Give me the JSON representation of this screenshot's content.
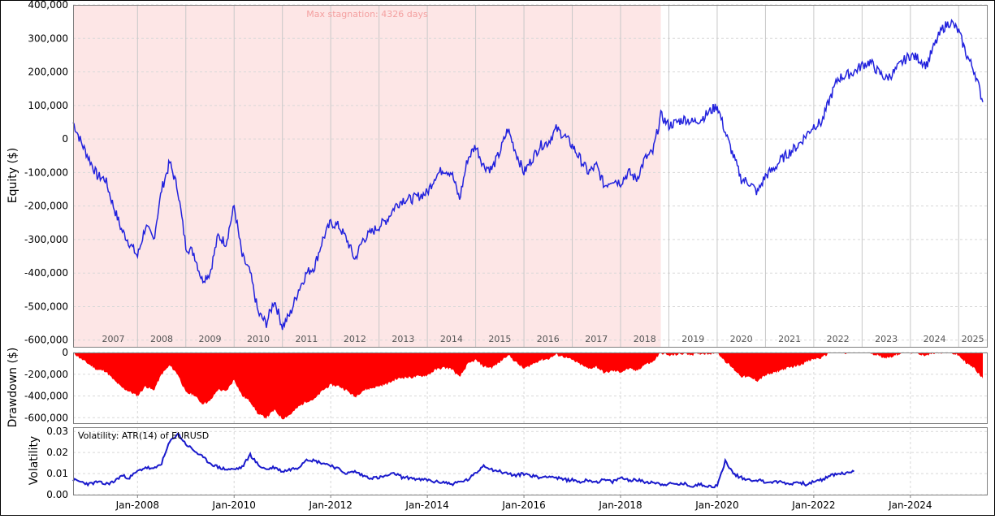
{
  "chart_data": [
    {
      "type": "line",
      "ylabel": "Equity ($)",
      "ylim": [
        -620000,
        400000
      ],
      "y_ticks": [
        400000,
        300000,
        200000,
        100000,
        0,
        -100000,
        -200000,
        -300000,
        -400000,
        -500000,
        -600000
      ],
      "y_tick_labels": [
        "400,000",
        "300,000",
        "200,000",
        "100,000",
        "0",
        "-100,000",
        "-200,000",
        "-300,000",
        "-400,000",
        "-500,000",
        "-600,000"
      ],
      "year_labels": [
        "2007",
        "2008",
        "2009",
        "2010",
        "2011",
        "2012",
        "2013",
        "2014",
        "2015",
        "2016",
        "2017",
        "2018",
        "2019",
        "2020",
        "2021",
        "2022",
        "2023",
        "2024",
        "2025"
      ],
      "max_stagnation_label": "Max stagnation: 4326 days",
      "stagnation_range": [
        "2006-09",
        "2018-11"
      ],
      "line_color": "#2222dd",
      "stagnation_fill_color": "#fde6e6",
      "series": [
        {
          "x": [
            "2006-09",
            "2006-11",
            "2007-01",
            "2007-03",
            "2007-05",
            "2007-07",
            "2007-09",
            "2007-11",
            "2008-01",
            "2008-03",
            "2008-05",
            "2008-07",
            "2008-09",
            "2008-11",
            "2009-01",
            "2009-03",
            "2009-05",
            "2009-07",
            "2009-09",
            "2009-11",
            "2010-01",
            "2010-03",
            "2010-05",
            "2010-07",
            "2010-09",
            "2010-11",
            "2011-01",
            "2011-03",
            "2011-05",
            "2011-07",
            "2011-09",
            "2011-11",
            "2012-01",
            "2012-03",
            "2012-05",
            "2012-07",
            "2012-09",
            "2012-11",
            "2013-01",
            "2013-03",
            "2013-05",
            "2013-07",
            "2013-09",
            "2013-11",
            "2014-01",
            "2014-03",
            "2014-05",
            "2014-07",
            "2014-09",
            "2014-11",
            "2015-01",
            "2015-03",
            "2015-05",
            "2015-07",
            "2015-09",
            "2015-11",
            "2016-01",
            "2016-03",
            "2016-05",
            "2016-07",
            "2016-09",
            "2016-11",
            "2017-01",
            "2017-03",
            "2017-05",
            "2017-07",
            "2017-09",
            "2017-11",
            "2018-01",
            "2018-03",
            "2018-05",
            "2018-07",
            "2018-09",
            "2018-11",
            "2019-01",
            "2019-03",
            "2019-05",
            "2019-07",
            "2019-09",
            "2019-11",
            "2020-01",
            "2020-03",
            "2020-05",
            "2020-07",
            "2020-09",
            "2020-11",
            "2021-01",
            "2021-03",
            "2021-05",
            "2021-07",
            "2021-09",
            "2021-11",
            "2022-01",
            "2022-03",
            "2022-05",
            "2022-07",
            "2022-09",
            "2022-11",
            "2023-01",
            "2023-03",
            "2023-05",
            "2023-07",
            "2023-09",
            "2023-11",
            "2024-01",
            "2024-03",
            "2024-05",
            "2024-07",
            "2024-09",
            "2024-11",
            "2025-01",
            "2025-03",
            "2025-05",
            "2025-07"
          ],
          "y": [
            50000,
            -10000,
            -60000,
            -110000,
            -120000,
            -200000,
            -270000,
            -310000,
            -350000,
            -260000,
            -300000,
            -150000,
            -70000,
            -150000,
            -320000,
            -340000,
            -420000,
            -400000,
            -290000,
            -310000,
            -200000,
            -350000,
            -400000,
            -520000,
            -550000,
            -480000,
            -560000,
            -520000,
            -450000,
            -400000,
            -380000,
            -300000,
            -250000,
            -260000,
            -300000,
            -360000,
            -300000,
            -280000,
            -260000,
            -240000,
            -200000,
            -180000,
            -180000,
            -170000,
            -160000,
            -110000,
            -90000,
            -100000,
            -180000,
            -60000,
            -20000,
            -80000,
            -90000,
            -40000,
            30000,
            -40000,
            -100000,
            -60000,
            -20000,
            -10000,
            30000,
            10000,
            -20000,
            -60000,
            -100000,
            -80000,
            -140000,
            -120000,
            -130000,
            -100000,
            -120000,
            -60000,
            -40000,
            70000,
            40000,
            50000,
            60000,
            50000,
            60000,
            80000,
            100000,
            20000,
            -50000,
            -120000,
            -130000,
            -160000,
            -110000,
            -90000,
            -60000,
            -40000,
            -20000,
            10000,
            40000,
            50000,
            120000,
            180000,
            190000,
            200000,
            220000,
            230000,
            200000,
            180000,
            200000,
            230000,
            250000,
            240000,
            220000,
            280000,
            330000,
            350000,
            320000,
            250000,
            200000,
            110000
          ]
        }
      ]
    },
    {
      "type": "area",
      "ylabel": "Drawdown ($)",
      "ylim": [
        -650000,
        0
      ],
      "y_ticks": [
        0,
        -200000,
        -400000,
        -600000
      ],
      "y_tick_labels": [
        "0",
        "-200,000",
        "-400,000",
        "-600,000"
      ],
      "fill_color": "#ff0000",
      "series": [
        {
          "x": [
            "2006-09",
            "2006-11",
            "2007-01",
            "2007-03",
            "2007-05",
            "2007-07",
            "2007-09",
            "2007-11",
            "2008-01",
            "2008-03",
            "2008-05",
            "2008-07",
            "2008-09",
            "2008-11",
            "2009-01",
            "2009-03",
            "2009-05",
            "2009-07",
            "2009-09",
            "2009-11",
            "2010-01",
            "2010-03",
            "2010-05",
            "2010-07",
            "2010-09",
            "2010-11",
            "2011-01",
            "2011-03",
            "2011-05",
            "2011-07",
            "2011-09",
            "2011-11",
            "2012-01",
            "2012-03",
            "2012-05",
            "2012-07",
            "2012-09",
            "2012-11",
            "2013-01",
            "2013-03",
            "2013-05",
            "2013-07",
            "2013-09",
            "2013-11",
            "2014-01",
            "2014-03",
            "2014-05",
            "2014-07",
            "2014-09",
            "2014-11",
            "2015-01",
            "2015-03",
            "2015-05",
            "2015-07",
            "2015-09",
            "2015-11",
            "2016-01",
            "2016-03",
            "2016-05",
            "2016-07",
            "2016-09",
            "2016-11",
            "2017-01",
            "2017-03",
            "2017-05",
            "2017-07",
            "2017-09",
            "2017-11",
            "2018-01",
            "2018-03",
            "2018-05",
            "2018-07",
            "2018-09",
            "2018-11",
            "2019-01",
            "2019-03",
            "2019-05",
            "2019-07",
            "2019-09",
            "2019-11",
            "2020-01",
            "2020-03",
            "2020-05",
            "2020-07",
            "2020-09",
            "2020-11",
            "2021-01",
            "2021-03",
            "2021-05",
            "2021-07",
            "2021-09",
            "2021-11",
            "2022-01",
            "2022-03",
            "2022-05",
            "2022-07",
            "2022-09",
            "2022-11",
            "2023-01",
            "2023-03",
            "2023-05",
            "2023-07",
            "2023-09",
            "2023-11",
            "2024-01",
            "2024-03",
            "2024-05",
            "2024-07",
            "2024-09",
            "2024-11",
            "2025-01",
            "2025-03",
            "2025-05",
            "2025-07"
          ],
          "y": [
            0,
            -60000,
            -110000,
            -160000,
            -170000,
            -250000,
            -320000,
            -360000,
            -400000,
            -310000,
            -350000,
            -200000,
            -120000,
            -200000,
            -370000,
            -390000,
            -470000,
            -450000,
            -340000,
            -360000,
            -250000,
            -400000,
            -450000,
            -570000,
            -600000,
            -530000,
            -610000,
            -570000,
            -500000,
            -450000,
            -430000,
            -350000,
            -300000,
            -310000,
            -350000,
            -410000,
            -350000,
            -330000,
            -310000,
            -290000,
            -250000,
            -230000,
            -230000,
            -220000,
            -210000,
            -160000,
            -140000,
            -150000,
            -230000,
            -110000,
            -70000,
            -130000,
            -140000,
            -90000,
            -20000,
            -90000,
            -150000,
            -110000,
            -70000,
            -60000,
            -20000,
            -40000,
            -70000,
            -110000,
            -150000,
            -130000,
            -190000,
            -170000,
            -180000,
            -150000,
            -170000,
            -110000,
            -90000,
            0,
            -30000,
            -20000,
            -10000,
            -20000,
            -10000,
            -10000,
            0,
            -80000,
            -150000,
            -220000,
            -230000,
            -260000,
            -210000,
            -190000,
            -160000,
            -140000,
            -120000,
            -90000,
            -60000,
            -50000,
            0,
            0,
            -10000,
            0,
            0,
            0,
            -30000,
            -50000,
            -30000,
            0,
            0,
            -10000,
            -30000,
            0,
            0,
            0,
            -30000,
            -100000,
            -150000,
            -240000
          ]
        }
      ]
    },
    {
      "type": "line",
      "ylabel": "Volatility",
      "ylim": [
        0,
        0.032
      ],
      "y_ticks": [
        0,
        0.01,
        0.02,
        0.03
      ],
      "y_tick_labels": [
        "0.00",
        "0.01",
        "0.02",
        "0.03"
      ],
      "x_tick_labels": [
        "Jan-2008",
        "Jan-2010",
        "Jan-2012",
        "Jan-2014",
        "Jan-2016",
        "Jan-2018",
        "Jan-2020",
        "Jan-2022",
        "Jan-2024"
      ],
      "x_tick_dates": [
        "2008-01",
        "2010-01",
        "2012-01",
        "2014-01",
        "2016-01",
        "2018-01",
        "2020-01",
        "2022-01",
        "2024-01"
      ],
      "annotation": "Volatility: ATR(14) of EURUSD",
      "line_color": "#1a1acc",
      "series": [
        {
          "x": [
            "2006-09",
            "2006-11",
            "2007-01",
            "2007-03",
            "2007-05",
            "2007-07",
            "2007-09",
            "2007-11",
            "2008-01",
            "2008-03",
            "2008-05",
            "2008-07",
            "2008-09",
            "2008-11",
            "2009-01",
            "2009-03",
            "2009-05",
            "2009-07",
            "2009-09",
            "2009-11",
            "2010-01",
            "2010-03",
            "2010-05",
            "2010-07",
            "2010-09",
            "2010-11",
            "2011-01",
            "2011-03",
            "2011-05",
            "2011-07",
            "2011-09",
            "2011-11",
            "2012-01",
            "2012-03",
            "2012-05",
            "2012-07",
            "2012-09",
            "2012-11",
            "2013-01",
            "2013-03",
            "2013-05",
            "2013-07",
            "2013-09",
            "2013-11",
            "2014-01",
            "2014-03",
            "2014-05",
            "2014-07",
            "2014-09",
            "2014-11",
            "2015-01",
            "2015-03",
            "2015-05",
            "2015-07",
            "2015-09",
            "2015-11",
            "2016-01",
            "2016-03",
            "2016-05",
            "2016-07",
            "2016-09",
            "2016-11",
            "2017-01",
            "2017-03",
            "2017-05",
            "2017-07",
            "2017-09",
            "2017-11",
            "2018-01",
            "2018-03",
            "2018-05",
            "2018-07",
            "2018-09",
            "2018-11",
            "2019-01",
            "2019-03",
            "2019-05",
            "2019-07",
            "2019-09",
            "2019-11",
            "2020-01",
            "2020-03",
            "2020-05",
            "2020-07",
            "2020-09",
            "2020-11",
            "2021-01",
            "2021-03",
            "2021-05",
            "2021-07",
            "2021-09",
            "2021-11",
            "2022-01",
            "2022-03",
            "2022-05",
            "2022-07",
            "2022-09",
            "2022-11"
          ],
          "y": [
            0.007,
            0.006,
            0.005,
            0.006,
            0.005,
            0.006,
            0.009,
            0.008,
            0.011,
            0.013,
            0.012,
            0.015,
            0.025,
            0.029,
            0.024,
            0.021,
            0.018,
            0.015,
            0.013,
            0.012,
            0.012,
            0.013,
            0.019,
            0.014,
            0.012,
            0.013,
            0.011,
            0.012,
            0.013,
            0.017,
            0.016,
            0.015,
            0.014,
            0.012,
            0.01,
            0.011,
            0.009,
            0.008,
            0.008,
            0.009,
            0.01,
            0.008,
            0.008,
            0.007,
            0.007,
            0.006,
            0.006,
            0.005,
            0.006,
            0.007,
            0.01,
            0.014,
            0.012,
            0.011,
            0.01,
            0.009,
            0.01,
            0.009,
            0.008,
            0.009,
            0.008,
            0.007,
            0.007,
            0.006,
            0.007,
            0.006,
            0.007,
            0.006,
            0.008,
            0.007,
            0.007,
            0.006,
            0.006,
            0.005,
            0.005,
            0.005,
            0.005,
            0.004,
            0.005,
            0.004,
            0.004,
            0.016,
            0.01,
            0.008,
            0.007,
            0.007,
            0.006,
            0.006,
            0.006,
            0.005,
            0.006,
            0.005,
            0.006,
            0.007,
            0.009,
            0.01,
            0.01,
            0.011
          ]
        }
      ]
    }
  ]
}
